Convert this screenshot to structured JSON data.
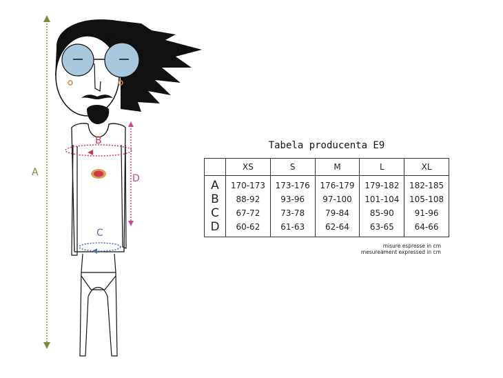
{
  "figure": {
    "labels": {
      "a": "A",
      "b": "B",
      "c": "C",
      "d": "D"
    },
    "colors": {
      "a": "#7a8a3a",
      "b": "#d0384a",
      "c": "#4a6fb0",
      "d": "#c4488a",
      "glasses": "#a8c8dc"
    },
    "icons": [
      "person-illustration",
      "height-arrow",
      "chest-measure-ellipse",
      "waist-measure-ellipse",
      "torso-length-arrow",
      "shirt-logo"
    ]
  },
  "table": {
    "title": "Tabela producenta E9",
    "columns": [
      "",
      "XS",
      "S",
      "M",
      "L",
      "XL"
    ],
    "rows": [
      {
        "label": "A",
        "values": [
          "170-173",
          "173-176",
          "176-179",
          "179-182",
          "182-185"
        ]
      },
      {
        "label": "B",
        "values": [
          "88-92",
          "93-96",
          "97-100",
          "101-104",
          "105-108"
        ]
      },
      {
        "label": "C",
        "values": [
          "67-72",
          "73-78",
          "79-84",
          "85-90",
          "91-96"
        ]
      },
      {
        "label": "D",
        "values": [
          "60-62",
          "61-63",
          "62-64",
          "63-65",
          "64-66"
        ]
      }
    ],
    "notes": [
      "misure espresse in cm",
      "mesureament expressed in cm"
    ]
  }
}
